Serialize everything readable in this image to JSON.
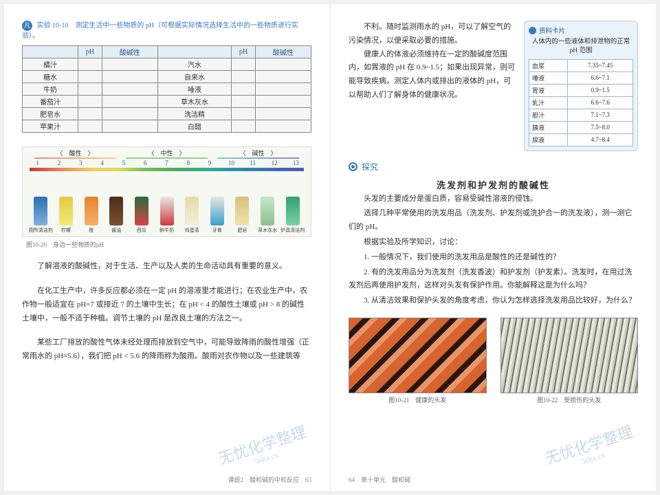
{
  "left": {
    "heading_badge": "凡",
    "heading": "实验 10-10　测定生活中一些物质的 pH（可根据实际情况选择生活中的一些物质进行实验）。",
    "table_headers": [
      "",
      "pH",
      "酸碱性",
      "",
      "pH",
      "酸碱性"
    ],
    "table_rows": [
      [
        "橘汁",
        "",
        "",
        "汽水",
        "",
        ""
      ],
      [
        "糖水",
        "",
        "",
        "自来水",
        "",
        ""
      ],
      [
        "牛奶",
        "",
        "",
        "唾液",
        "",
        ""
      ],
      [
        "番茄汁",
        "",
        "",
        "草木灰水",
        "",
        ""
      ],
      [
        "肥皂水",
        "",
        "",
        "洗洁精",
        "",
        ""
      ],
      [
        "苹果汁",
        "",
        "",
        "白醋",
        "",
        ""
      ]
    ],
    "zone_labels": [
      "酸性",
      "中性",
      "碱性"
    ],
    "scale_nums": [
      "1",
      "2",
      "3",
      "4",
      "5",
      "6",
      "7",
      "8",
      "9",
      "10",
      "11",
      "12",
      "13"
    ],
    "items": [
      {
        "label": "厕所清洁剂",
        "c1": "#2b6fb0",
        "c2": "#7fb2df"
      },
      {
        "label": "柠檬",
        "c1": "#e2cc3e",
        "c2": "#f3e97d"
      },
      {
        "label": "橙",
        "c1": "#e6832f",
        "c2": "#f3b26a"
      },
      {
        "label": "酱油",
        "c1": "#4a2d1a",
        "c2": "#7a5232"
      },
      {
        "label": "西瓜",
        "c1": "#2c6b3b",
        "c2": "#d94444"
      },
      {
        "label": "鲜牛奶",
        "c1": "#e8e8e8",
        "c2": "#cf3a3a"
      },
      {
        "label": "鸡蛋清",
        "c1": "#e8d9a8",
        "c2": "#f2eedb"
      },
      {
        "label": "牙膏",
        "c1": "#e6e6e6",
        "c2": "#3aa0c9"
      },
      {
        "label": "肥皂",
        "c1": "#d9c07a",
        "c2": "#efe2b0"
      },
      {
        "label": "草木灰水",
        "c1": "#c7e6c7",
        "c2": "#8fbf8f"
      },
      {
        "label": "炉具清洁剂",
        "c1": "#2fa06f",
        "c2": "#7fd0a8"
      }
    ],
    "fig_caption": "图10-20　身边一些物质的pH",
    "p1": "了解溶液的酸碱性，对于生活、生产以及人类的生命活动具有重要的意义。",
    "p2": "在化工生产中，许多反应都必须在一定 pH 的溶液里才能进行；在农业生产中，农作物一般适宜在 pH=7 或接近 7 的土壤中生长；在 pH < 4 的酸性土壤或 pH > 8 的碱性土壤中，一般不适于种植。调节土壤的 pH 是改良土壤的方法之一。",
    "p3": "某些工厂排放的酸性气体未经处理而排放到空气中，可能导致降雨的酸性增强（正常雨水的 pH≈5.6），我们把 pH < 5.6 的降雨称为酸雨。酸雨对农作物以及一些建筑等",
    "footer": "课题2　酸和碱的中和反应　63"
  },
  "right": {
    "p1": "不利。随时监测雨水的 pH，可以了解空气的污染情况，以便采取必要的措施。",
    "p2": "健康人的体液必须维持在一定的酸碱度范围内，如胃液的 pH 在 0.9~1.5；如果出现异常，则可能导致疾病。测定人体内或排出的液体的 pH，可以帮助人们了解身体的健康状况。",
    "card_badge": "资料卡片",
    "card_title": "人体内的一些液体和排泄物的正常 pH 范围",
    "card_rows": [
      [
        "血浆",
        "7.35~7.45"
      ],
      [
        "唾液",
        "6.6~7.1"
      ],
      [
        "胃液",
        "0.9~1.5"
      ],
      [
        "乳汁",
        "6.6~7.6"
      ],
      [
        "胆汁",
        "7.1~7.3"
      ],
      [
        "胰液",
        "7.5~8.0"
      ],
      [
        "尿液",
        "4.7~8.4"
      ]
    ],
    "section_label": "探究",
    "inv_title": "洗发剂和护发剂的酸碱性",
    "inv_p1": "头发的主要成分是蛋白质，容易受碱性溶液的侵蚀。",
    "inv_p2": "选择几种平常使用的洗发用品（洗发剂、护发剂或洗护合一的洗发液），测一测它们的 pH。",
    "inv_p3": "根据实验及所学知识，讨论：",
    "inv_q1": "1. 一般情况下，我们使用的洗发用品是酸性的还是碱性的？",
    "inv_q2": "2. 有的洗发用品分为洗发剂（洗发香波）和护发剂（护发素）。洗发时，在用过洗发剂后再使用护发剂，这样对头发有保护作用。你能解释这是为什么吗？",
    "inv_q3": "3. 从清洁效果和保护头发的角度考虑，你认为怎样选择洗发用品比较好，为什么？",
    "img1_cap": "图10-21　健康的头发",
    "img2_cap": "图10-22　受损伤的头发",
    "footer": "64　第十单元　酸和碱"
  },
  "style": {
    "img1_bg": "repeating-linear-gradient(135deg,#d8642e 0 14px,#2a1610 14px 22px,#e8956a 22px 30px)",
    "img2_bg": "repeating-linear-gradient(100deg,#c9cfc2 0 3px,#6e7662 3px 5px,#e5e9de 5px 9px)"
  }
}
